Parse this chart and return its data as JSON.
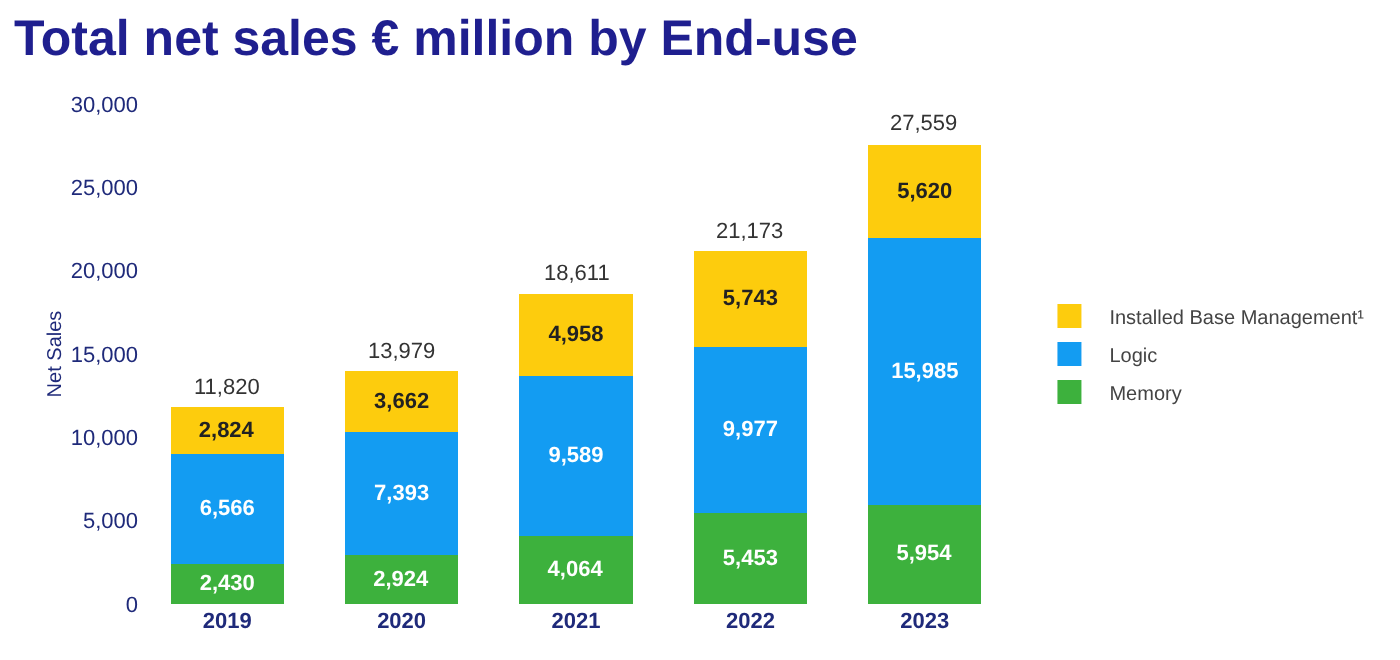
{
  "chart_data": {
    "type": "bar",
    "title": "Total net sales € million by End-use",
    "ylabel": "Net Sales",
    "categories": [
      "2019",
      "2020",
      "2021",
      "2022",
      "2023"
    ],
    "stacked": true,
    "series": [
      {
        "name": "Memory",
        "color": "#3db13d",
        "values": [
          2430,
          2924,
          4064,
          5453,
          5954
        ],
        "value_labels": [
          "2,430",
          "2,924",
          "4,064",
          "5,453",
          "5,954"
        ]
      },
      {
        "name": "Logic",
        "color": "#139cf2",
        "values": [
          6566,
          7393,
          9589,
          9977,
          15985
        ],
        "value_labels": [
          "6,566",
          "7,393",
          "9,589",
          "9,977",
          "15,985"
        ]
      },
      {
        "name": "Installed Base Management¹",
        "color": "#fdcc0d",
        "values": [
          2824,
          3662,
          4958,
          5743,
          5620
        ],
        "value_labels": [
          "2,824",
          "3,662",
          "4,958",
          "5,743",
          "5,620"
        ]
      }
    ],
    "totals": [
      "11,820",
      "13,979",
      "18,611",
      "21,173",
      "27,559"
    ],
    "ylim": [
      0,
      30000
    ],
    "yticks": [
      0,
      {
        "value": 5000,
        "label": "5,000"
      },
      {
        "value": 10000,
        "label": "10,000"
      },
      {
        "value": 15000,
        "label": "15,000"
      },
      {
        "value": 20000,
        "label": "20,000"
      },
      {
        "value": 25000,
        "label": "25,000"
      },
      {
        "value": 30000,
        "label": "30,000"
      }
    ],
    "grid": false,
    "legend": "right"
  }
}
